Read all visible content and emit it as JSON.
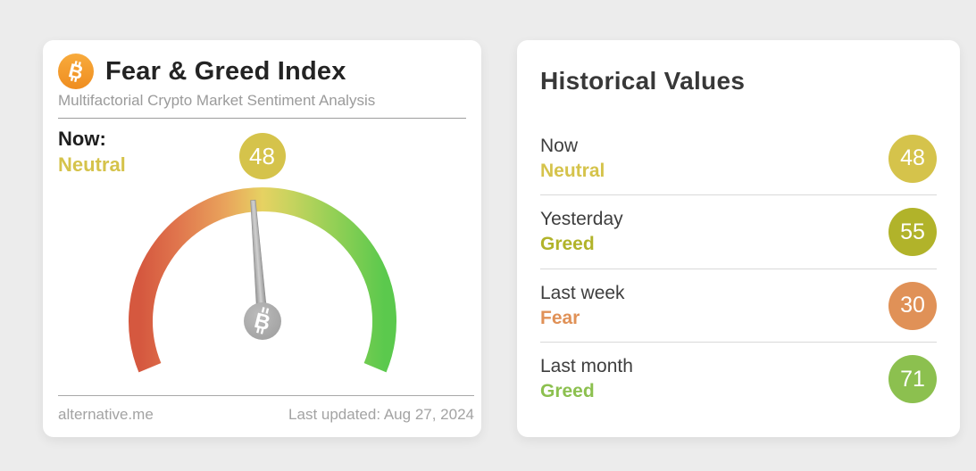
{
  "gauge_card": {
    "logo_icon": "bitcoin-icon",
    "logo_glyph": "B",
    "title": "Fear & Greed Index",
    "subtitle": "Multifactorial Crypto Market Sentiment Analysis",
    "now_label": "Now:",
    "now_sentiment": "Neutral",
    "now_value": "48",
    "gauge": {
      "min": 0,
      "max": 100,
      "sweep_degrees": 225,
      "needle_hub_icon": "bitcoin-icon"
    },
    "colors": {
      "now": "#d5c34b"
    },
    "footer": {
      "source": "alternative.me",
      "last_updated": "Last updated: Aug 27, 2024"
    }
  },
  "historical_card": {
    "title": "Historical Values",
    "rows": [
      {
        "label": "Now",
        "sentiment": "Neutral",
        "value": "48",
        "color": "#d5c34b"
      },
      {
        "label": "Yesterday",
        "sentiment": "Greed",
        "value": "55",
        "color": "#b1b32a"
      },
      {
        "label": "Last week",
        "sentiment": "Fear",
        "value": "30",
        "color": "#e09157"
      },
      {
        "label": "Last month",
        "sentiment": "Greed",
        "value": "71",
        "color": "#8cc04f"
      }
    ]
  }
}
